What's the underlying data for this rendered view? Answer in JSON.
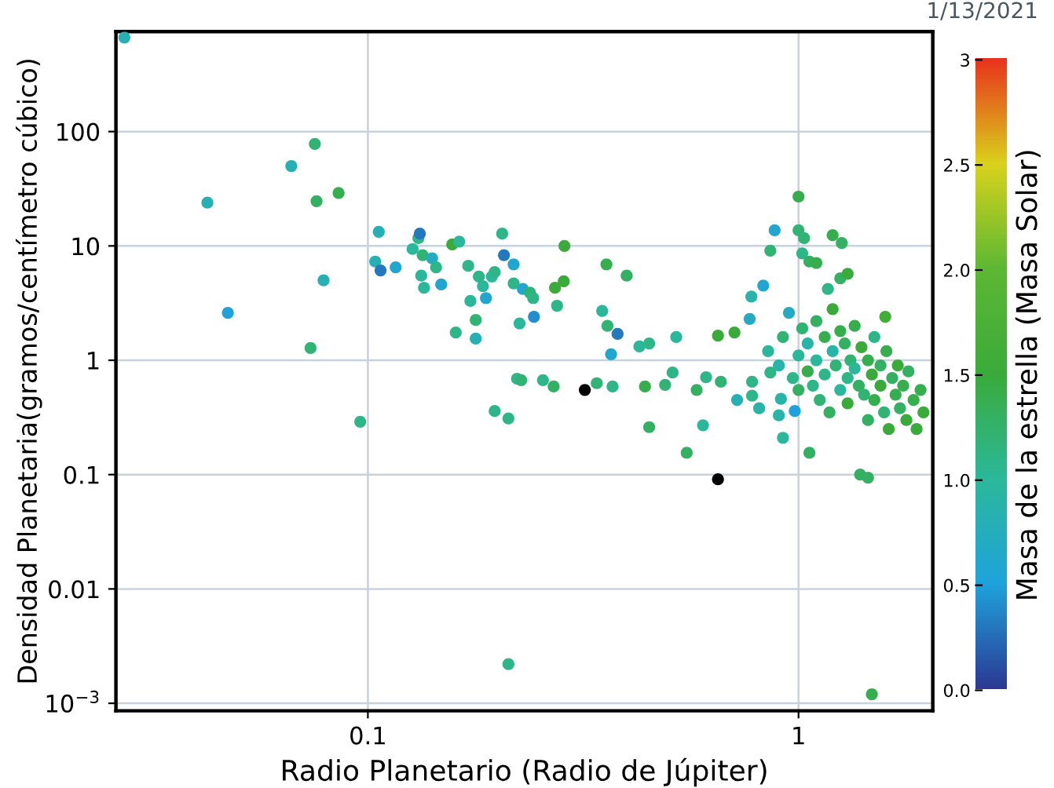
{
  "chart_data": {
    "type": "scatter",
    "xlabel": "Radio Planetario (Radio de Júpiter)",
    "ylabel": "Densidad Planetaria(gramos/centímetro cúbico)",
    "clabel": "Masa de la estrella (Masa Solar)",
    "annotations": [
      "1/13/2021"
    ],
    "log": "xy",
    "grid": true,
    "marker": "circle",
    "xlim": [
      0.026,
      2.05
    ],
    "ylim": [
      0.00086,
      750
    ],
    "xticks": [
      0.1,
      1
    ],
    "yticks": [
      {
        "value": 0.001,
        "label": "10$^{−3}$"
      },
      0.01,
      0.1,
      1,
      10,
      100
    ],
    "clim": [
      0,
      3
    ],
    "cticks": [
      {
        "value": 0,
        "label": "0.0"
      },
      {
        "value": 0.5,
        "label": "0.5"
      },
      {
        "value": 1,
        "label": "1.0"
      },
      {
        "value": 1.5,
        "label": "1.5"
      },
      {
        "value": 2,
        "label": "2.0"
      },
      {
        "value": 2.5,
        "label": "2.5"
      },
      {
        "value": 3,
        "label": "3"
      }
    ],
    "x": [
      0.319,
      0.65,
      0.0272,
      0.0424,
      0.0473,
      0.0664,
      0.0753,
      0.076,
      0.0855,
      0.0789,
      0.0736,
      0.096,
      0.106,
      0.104,
      0.107,
      0.116,
      0.127,
      0.131,
      0.132,
      0.134,
      0.133,
      0.135,
      0.141,
      0.144,
      0.148,
      0.157,
      0.163,
      0.16,
      0.171,
      0.173,
      0.178,
      0.178,
      0.181,
      0.188,
      0.185,
      0.194,
      0.197,
      0.205,
      0.207,
      0.218,
      0.218,
      0.225,
      0.229,
      0.238,
      0.242,
      0.243,
      0.285,
      0.272,
      0.286,
      0.358,
      0.399,
      0.275,
      0.35,
      0.36,
      0.38,
      0.367,
      0.427,
      0.45,
      0.52,
      0.65,
      0.71,
      0.777,
      0.77,
      0.828,
      0.86,
      0.88,
      1.0,
      1.0,
      1.03,
      1.02,
      1.06,
      1.1,
      1.2,
      1.26,
      1.25,
      1.3,
      1.17,
      1.59,
      0.197,
      0.212,
      0.212,
      0.222,
      0.227,
      0.255,
      0.27,
      0.34,
      0.37,
      0.44,
      0.49,
      0.51,
      0.58,
      0.61,
      0.66,
      0.72,
      0.78,
      0.81,
      0.86,
      0.9,
      0.92,
      0.98,
      1.06,
      1.39,
      1.45,
      1.48,
      0.45,
      0.55,
      0.6,
      0.78,
      0.91,
      0.85,
      0.9,
      0.92,
      0.95,
      0.97,
      1.0,
      1.0,
      1.02,
      1.05,
      1.05,
      1.08,
      1.1,
      1.1,
      1.12,
      1.15,
      1.15,
      1.18,
      1.2,
      1.2,
      1.22,
      1.25,
      1.25,
      1.28,
      1.3,
      1.3,
      1.32,
      1.35,
      1.35,
      1.38,
      1.4,
      1.42,
      1.45,
      1.45,
      1.48,
      1.5,
      1.5,
      1.55,
      1.55,
      1.58,
      1.6,
      1.62,
      1.65,
      1.68,
      1.7,
      1.72,
      1.75,
      1.78,
      1.8,
      1.85,
      1.88,
      1.92,
      1.95
    ],
    "values": [
      0.55,
      0.091,
      665,
      23.9,
      2.6,
      50,
      78,
      24.6,
      29,
      5.0,
      1.28,
      0.29,
      13.3,
      7.3,
      6.1,
      6.5,
      9.4,
      11.7,
      12.8,
      8.3,
      5.5,
      4.3,
      7.8,
      6.5,
      4.6,
      10.3,
      10.9,
      1.75,
      6.7,
      3.3,
      2.25,
      1.55,
      5.4,
      3.5,
      4.45,
      5.4,
      5.9,
      12.8,
      8.3,
      4.7,
      6.9,
      2.1,
      4.2,
      3.9,
      3.5,
      2.4,
      4.9,
      4.3,
      10,
      6.9,
      5.5,
      3.0,
      2.7,
      2.0,
      1.7,
      1.13,
      1.32,
      1.4,
      1.6,
      1.64,
      1.75,
      3.6,
      2.3,
      4.5,
      9.1,
      13.7,
      27,
      13.7,
      11.7,
      8.6,
      7.3,
      7.1,
      12.4,
      10.6,
      5.2,
      5.7,
      4.2,
      2.4,
      0.36,
      0.31,
      0.0022,
      0.69,
      0.67,
      0.67,
      0.59,
      0.63,
      0.59,
      0.59,
      0.61,
      0.78,
      0.55,
      0.71,
      0.65,
      0.45,
      0.65,
      0.38,
      0.78,
      0.33,
      0.21,
      0.36,
      0.155,
      0.1,
      0.094,
      0.0012,
      0.26,
      0.155,
      0.27,
      0.49,
      0.46,
      1.2,
      0.9,
      1.6,
      2.6,
      0.7,
      1.1,
      0.55,
      1.9,
      1.4,
      0.8,
      0.6,
      2.2,
      1.0,
      0.45,
      1.6,
      0.75,
      0.35,
      1.2,
      2.8,
      0.9,
      0.55,
      1.8,
      1.4,
      0.7,
      0.42,
      1.0,
      2.0,
      0.85,
      0.6,
      1.3,
      0.5,
      1.0,
      0.3,
      0.75,
      1.6,
      0.45,
      0.9,
      0.6,
      0.35,
      1.2,
      0.25,
      0.7,
      0.5,
      0.9,
      0.38,
      0.6,
      0.3,
      0.8,
      0.45,
      0.25,
      0.55,
      0.35
    ],
    "cvalues": [
      null,
      null,
      0.8,
      0.8,
      0.5,
      0.8,
      1.2,
      1.3,
      1.4,
      0.8,
      1.2,
      1.1,
      0.8,
      0.8,
      0.3,
      0.6,
      1.0,
      1.1,
      0.3,
      1.2,
      1.0,
      1.0,
      0.7,
      1.1,
      0.6,
      1.5,
      1.0,
      1.1,
      1.1,
      1.0,
      1.2,
      0.8,
      1.1,
      0.6,
      1.0,
      1.0,
      1.1,
      1.1,
      0.3,
      1.1,
      0.6,
      1.0,
      0.6,
      1.2,
      1.1,
      0.4,
      1.5,
      1.5,
      1.5,
      1.4,
      1.3,
      1.1,
      1.0,
      1.2,
      0.3,
      0.6,
      1.0,
      1.1,
      1.0,
      1.5,
      1.5,
      0.9,
      0.7,
      0.6,
      1.2,
      0.6,
      1.4,
      1.2,
      1.2,
      1.1,
      1.3,
      1.4,
      1.4,
      1.3,
      1.3,
      1.5,
      1.1,
      1.6,
      1.1,
      1.1,
      1.1,
      1.1,
      1.2,
      1.1,
      1.3,
      1.2,
      1.1,
      1.4,
      1.2,
      1.1,
      1.3,
      1.1,
      1.2,
      0.8,
      1.1,
      0.9,
      1.1,
      0.9,
      1.0,
      0.5,
      1.3,
      1.3,
      1.3,
      1.4,
      1.3,
      1.3,
      1.0,
      1.1,
      0.9,
      1.0,
      0.9,
      1.2,
      0.7,
      1.1,
      1.0,
      1.3,
      1.2,
      0.9,
      1.4,
      1.1,
      1.3,
      1.0,
      1.2,
      1.4,
      1.1,
      1.3,
      0.9,
      1.5,
      1.2,
      1.0,
      1.4,
      1.3,
      1.1,
      1.5,
      1.2,
      1.4,
      1.0,
      1.3,
      1.5,
      1.2,
      1.4,
      1.3,
      1.5,
      1.1,
      1.4,
      1.3,
      1.5,
      1.2,
      1.4,
      1.5,
      1.3,
      1.4,
      1.5,
      1.3,
      1.4,
      1.5,
      1.3,
      1.4,
      1.5,
      1.4,
      1.5
    ]
  }
}
